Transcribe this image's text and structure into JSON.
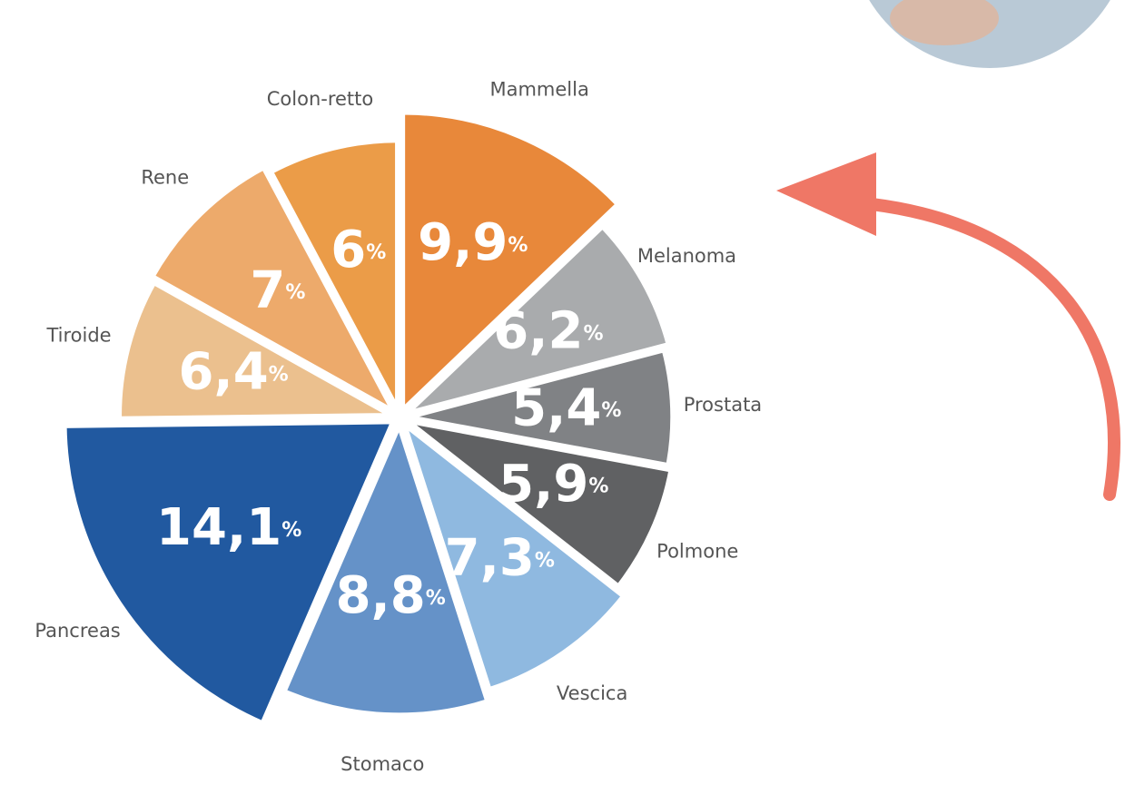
{
  "chart_data": {
    "type": "pie",
    "categories": [
      "Mammella",
      "Melanoma",
      "Prostata",
      "Polmone",
      "Vescica",
      "Stomaco",
      "Pancreas",
      "Tiroide",
      "Rene",
      "Colon-retto"
    ],
    "values": [
      9.9,
      6.2,
      5.4,
      5.9,
      7.3,
      8.8,
      14.1,
      6.4,
      7,
      6
    ],
    "value_labels": [
      "9,9%",
      "6,2%",
      "5,4%",
      "5,9%",
      "7,3%",
      "8,8%",
      "14,1%",
      "6,4%",
      "7%",
      "6%"
    ],
    "colors": [
      "#e8883a",
      "#a9abad",
      "#808285",
      "#606163",
      "#8fb9e0",
      "#6592c8",
      "#2159a0",
      "#ebc08e",
      "#edaa6b",
      "#eb9c48"
    ]
  }
}
